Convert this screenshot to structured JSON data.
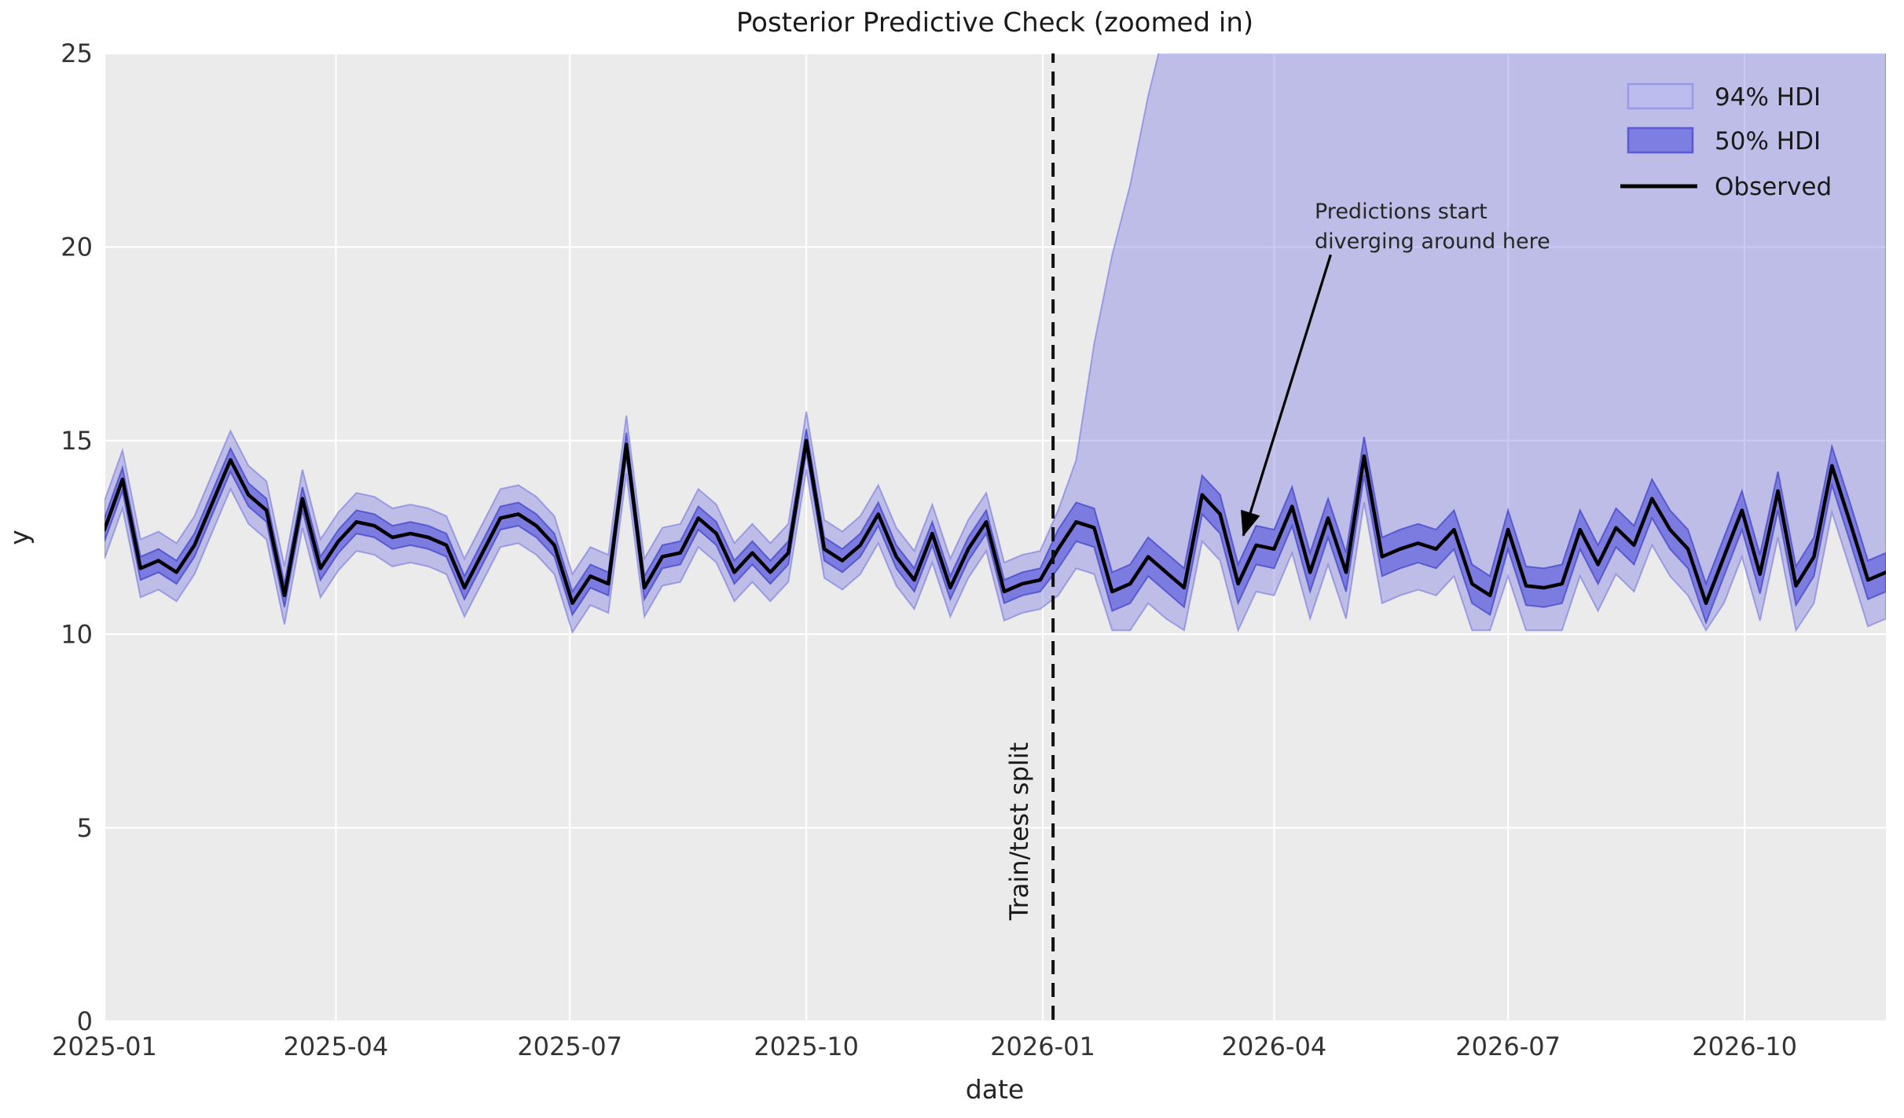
{
  "title": "Posterior Predictive Check (zoomed in)",
  "axes": {
    "xlabel": "date",
    "ylabel": "y",
    "x_ticks": [
      {
        "label": "2025-01",
        "date": "2025-01-01"
      },
      {
        "label": "2025-04",
        "date": "2025-04-01"
      },
      {
        "label": "2025-07",
        "date": "2025-07-01"
      },
      {
        "label": "2025-10",
        "date": "2025-10-01"
      },
      {
        "label": "2026-01",
        "date": "2026-01-01"
      },
      {
        "label": "2026-04",
        "date": "2026-04-01"
      },
      {
        "label": "2026-07",
        "date": "2026-07-01"
      },
      {
        "label": "2026-10",
        "date": "2026-10-01"
      }
    ],
    "y_ticks": [
      0,
      5,
      10,
      15,
      20,
      25
    ]
  },
  "legend": {
    "items": [
      {
        "label": "94% HDI",
        "swatch": "hdi94"
      },
      {
        "label": "50% HDI",
        "swatch": "hdi50"
      },
      {
        "label": "Observed",
        "swatch": "line"
      }
    ]
  },
  "split": {
    "label": "Train/test split",
    "date": "2026-01-05"
  },
  "annotation": {
    "line1": "Predictions start",
    "line2": "diverging around here",
    "arrow_start": {
      "date": "2026-04-23",
      "y": 19.8
    },
    "arrow_tip": {
      "date": "2026-03-20",
      "y": 12.55
    }
  },
  "colors": {
    "plot_bg": "#ebebeb",
    "grid": "#ffffff",
    "hdi94_fill": "rgba(121,121,226,0.40)",
    "hdi94_edge": "rgba(110,110,220,0.55)",
    "hdi50_fill": "rgba(97,97,222,0.72)",
    "hdi50_edge": "rgba(70,70,200,0.75)",
    "observed": "#000000",
    "split_line": "#111111",
    "arrow": "#000000",
    "legend94_fill": "#bcbcee",
    "legend94_edge": "#9a9ae4",
    "legend50_fill": "#7d7de2",
    "legend50_edge": "#5b5bd0"
  },
  "chart_data": {
    "type": "line",
    "title": "Posterior Predictive Check (zoomed in)",
    "xlabel": "date",
    "ylabel": "y",
    "ylim": [
      0,
      25
    ],
    "x_range": [
      "2025-01-01",
      "2026-11-24"
    ],
    "start_date": "2025-01-01",
    "freq_days": 7,
    "train_test_split_date": "2026-01-05",
    "legend_position": "upper right",
    "grid": true,
    "observed": [
      12.7,
      14.0,
      11.7,
      11.9,
      11.6,
      12.3,
      13.4,
      14.5,
      13.6,
      13.2,
      11.0,
      13.5,
      11.7,
      12.4,
      12.9,
      12.8,
      12.5,
      12.6,
      12.5,
      12.3,
      11.2,
      12.1,
      13.0,
      13.1,
      12.8,
      12.3,
      10.8,
      11.5,
      11.3,
      14.9,
      11.2,
      12.0,
      12.1,
      13.0,
      12.6,
      11.6,
      12.1,
      11.6,
      12.1,
      15.0,
      12.2,
      11.9,
      12.3,
      13.1,
      12.0,
      11.4,
      12.6,
      11.2,
      12.2,
      12.9,
      11.1,
      11.3,
      11.4,
      12.2,
      12.9,
      12.75,
      11.1,
      11.3,
      12.0,
      11.6,
      11.2,
      13.6,
      13.1,
      11.3,
      12.3,
      12.2,
      13.3,
      11.6,
      13.0,
      11.6,
      14.6,
      12.0,
      12.2,
      12.35,
      12.2,
      12.7,
      11.3,
      11.0,
      12.7,
      11.25,
      11.2,
      11.3,
      12.7,
      11.8,
      12.75,
      12.3,
      13.5,
      12.7,
      12.2,
      10.8,
      12.0,
      13.2,
      11.55,
      13.7,
      11.25,
      12.0,
      14.35,
      12.9,
      11.4,
      11.6
    ],
    "hdi50_lower": [
      12.4,
      13.7,
      11.4,
      11.6,
      11.3,
      12.0,
      13.1,
      14.2,
      13.3,
      12.9,
      10.7,
      13.2,
      11.4,
      12.1,
      12.6,
      12.5,
      12.2,
      12.3,
      12.2,
      12.0,
      10.9,
      11.8,
      12.7,
      12.8,
      12.5,
      12.0,
      10.5,
      11.2,
      11.0,
      14.6,
      10.9,
      11.7,
      11.8,
      12.7,
      12.3,
      11.3,
      11.8,
      11.3,
      11.8,
      14.7,
      11.9,
      11.6,
      12.0,
      12.8,
      11.7,
      11.1,
      12.3,
      10.9,
      11.9,
      12.6,
      10.8,
      11.0,
      11.1,
      11.7,
      12.4,
      12.25,
      10.6,
      10.8,
      11.5,
      11.1,
      10.7,
      13.1,
      12.6,
      10.8,
      11.8,
      11.7,
      12.8,
      11.1,
      12.5,
      11.1,
      14.1,
      11.5,
      11.7,
      11.85,
      11.7,
      12.2,
      10.8,
      10.5,
      12.2,
      10.75,
      10.7,
      10.8,
      12.2,
      11.3,
      12.25,
      11.8,
      13.0,
      12.2,
      11.7,
      10.3,
      11.5,
      12.7,
      11.05,
      13.2,
      10.75,
      11.5,
      13.85,
      12.4,
      10.9,
      11.1
    ],
    "hdi50_upper": [
      13.0,
      14.3,
      12.0,
      12.2,
      11.9,
      12.6,
      13.7,
      14.8,
      13.9,
      13.5,
      11.3,
      13.8,
      12.0,
      12.7,
      13.2,
      13.1,
      12.8,
      12.9,
      12.8,
      12.6,
      11.5,
      12.4,
      13.3,
      13.4,
      13.1,
      12.6,
      11.1,
      11.8,
      11.6,
      15.2,
      11.5,
      12.3,
      12.4,
      13.3,
      12.9,
      11.9,
      12.4,
      11.9,
      12.4,
      15.3,
      12.5,
      12.2,
      12.6,
      13.4,
      12.3,
      11.7,
      12.9,
      11.5,
      12.5,
      13.2,
      11.4,
      11.6,
      11.7,
      12.7,
      13.4,
      13.25,
      11.6,
      11.8,
      12.5,
      12.1,
      11.7,
      14.1,
      13.6,
      11.8,
      12.8,
      12.7,
      13.8,
      12.1,
      13.5,
      12.1,
      15.1,
      12.5,
      12.7,
      12.85,
      12.7,
      13.2,
      11.8,
      11.5,
      13.2,
      11.75,
      11.7,
      11.8,
      13.2,
      12.3,
      13.25,
      12.8,
      14.0,
      13.2,
      12.7,
      11.3,
      12.5,
      13.7,
      12.05,
      14.2,
      11.75,
      12.5,
      14.85,
      13.4,
      11.9,
      12.1
    ],
    "hdi94_lower": [
      11.95,
      13.25,
      10.95,
      11.15,
      10.85,
      11.55,
      12.65,
      13.75,
      12.85,
      12.45,
      10.25,
      12.75,
      10.95,
      11.65,
      12.15,
      12.05,
      11.75,
      11.85,
      11.75,
      11.55,
      10.45,
      11.35,
      12.25,
      12.35,
      12.05,
      11.55,
      10.05,
      10.75,
      10.55,
      14.15,
      10.45,
      11.25,
      11.35,
      12.25,
      11.85,
      10.85,
      11.35,
      10.85,
      11.35,
      14.25,
      11.45,
      11.15,
      11.55,
      12.35,
      11.25,
      10.65,
      11.85,
      10.45,
      11.45,
      12.15,
      10.35,
      10.55,
      10.65,
      11.0,
      11.7,
      11.55,
      10.1,
      10.1,
      10.8,
      10.4,
      10.1,
      12.4,
      11.9,
      10.1,
      11.1,
      11.0,
      12.1,
      10.4,
      11.8,
      10.4,
      13.4,
      10.8,
      11.0,
      11.15,
      11.0,
      11.5,
      10.1,
      10.1,
      11.5,
      10.1,
      10.1,
      10.1,
      11.5,
      10.6,
      11.55,
      11.1,
      12.3,
      11.5,
      11.0,
      10.1,
      10.8,
      12.0,
      10.35,
      12.5,
      10.1,
      10.8,
      13.15,
      11.7,
      10.2,
      10.4
    ],
    "hdi94_upper": [
      13.45,
      14.75,
      12.45,
      12.65,
      12.35,
      13.05,
      14.15,
      15.25,
      14.35,
      13.95,
      11.75,
      14.25,
      12.45,
      13.15,
      13.65,
      13.55,
      13.25,
      13.35,
      13.25,
      13.05,
      11.95,
      12.85,
      13.75,
      13.85,
      13.55,
      13.05,
      11.55,
      12.25,
      12.05,
      15.65,
      11.95,
      12.75,
      12.85,
      13.75,
      13.35,
      12.35,
      12.85,
      12.35,
      12.85,
      15.75,
      12.95,
      12.65,
      13.05,
      13.85,
      12.75,
      12.15,
      13.35,
      11.95,
      12.95,
      13.65,
      11.85,
      12.05,
      12.15,
      13.2,
      14.5,
      17.5,
      19.8,
      21.6,
      23.9,
      25.8,
      26.5,
      26.5,
      26.5,
      26.5,
      26.5,
      26.5,
      26.5,
      26.5,
      26.5,
      26.5,
      26.5,
      26.5,
      26.5,
      26.5,
      26.5,
      26.5,
      26.5,
      26.5,
      26.5,
      26.5,
      26.5,
      26.5,
      26.5,
      26.5,
      26.5,
      26.5,
      26.5,
      26.5,
      26.5,
      26.5,
      26.5,
      26.5,
      26.5,
      26.5,
      26.5,
      26.5,
      26.5,
      26.5,
      26.5,
      26.5
    ]
  }
}
